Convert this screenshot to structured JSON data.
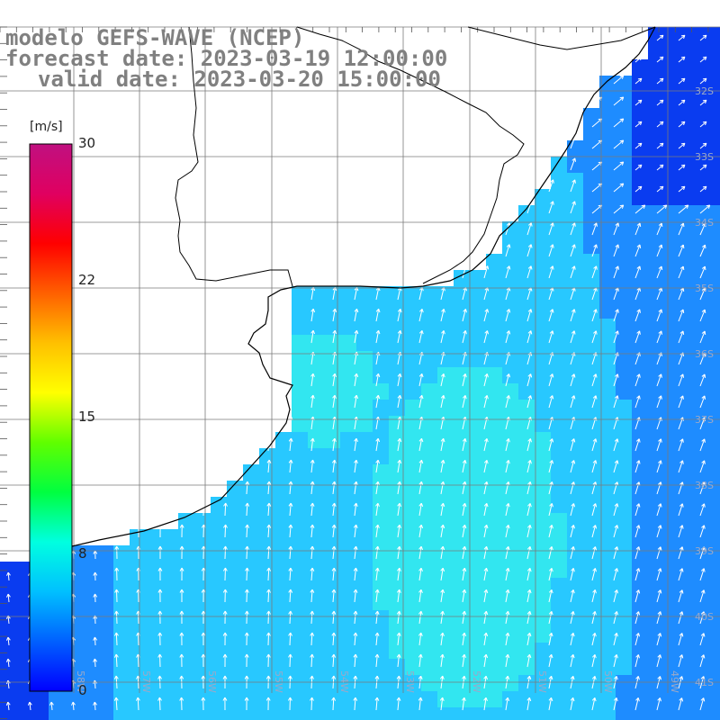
{
  "title": {
    "line1": "modelo GEFS-WAVE (NCEP)",
    "line2": "forecast date: 2023-03-19 12:00:00",
    "line3": "valid date: 2023-03-20 15:00:00"
  },
  "colorbar": {
    "unit": "[m/s]",
    "min": 0,
    "max": 30,
    "ticks": [
      "30",
      "22",
      "15",
      "8",
      "0"
    ],
    "tick_values": [
      30,
      22,
      15,
      8,
      0
    ],
    "colors": [
      "#0000ff",
      "#0060ff",
      "#00c0ff",
      "#00ffe0",
      "#00ff40",
      "#60ff00",
      "#ffff00",
      "#ffc000",
      "#ff6000",
      "#ff0000",
      "#e00060",
      "#c01080"
    ]
  },
  "lat_labels": [
    "32S",
    "33S",
    "34S",
    "35S",
    "36S",
    "37S",
    "38S",
    "39S",
    "40S",
    "41S"
  ],
  "lon_labels": [
    "58W",
    "57W",
    "56W",
    "55W",
    "54W",
    "53W",
    "52W",
    "51W",
    "50W",
    "49W"
  ],
  "colors": {
    "sea_dark": "#0a3cf0",
    "sea_mid": "#1e8cff",
    "sea_light": "#28c8ff",
    "sea_max": "#32e6f0",
    "land": "#ffffff",
    "coast": "#000000",
    "grid": "#7a7a7a",
    "arrow": "#ffffff"
  }
}
